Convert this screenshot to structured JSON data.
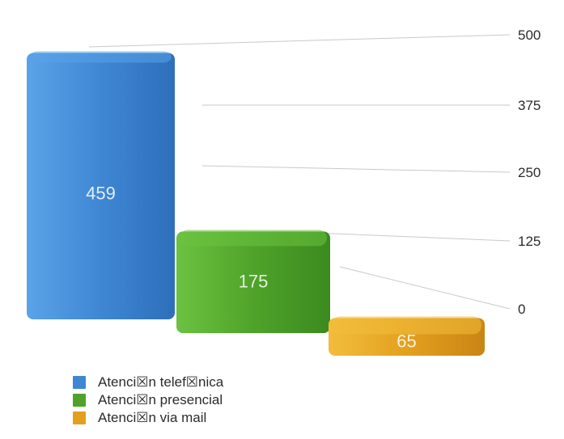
{
  "chart_data": {
    "type": "bar",
    "categories": [
      "Atenci☒n telef☒nica",
      "Atenci☒n presencial",
      "Atenci☒n via mail"
    ],
    "values": [
      459,
      175,
      65
    ],
    "value_labels": [
      "459",
      "175",
      "65"
    ],
    "ylim": [
      0,
      500
    ],
    "yticks": [
      0,
      125,
      250,
      375,
      500
    ],
    "ytick_labels": [
      "0",
      "125",
      "250",
      "375",
      "500"
    ],
    "y_axis_position": "right",
    "grid": true,
    "legend_position": "bottom-left",
    "colors": [
      "#3f87d3",
      "#4fa32a",
      "#e3a01f"
    ],
    "legend": [
      {
        "label": "Atenci☒n telef☒nica",
        "color": "#3f87d3"
      },
      {
        "label": "Atenci☒n presencial",
        "color": "#4fa32a"
      },
      {
        "label": "Atenci☒n via mail",
        "color": "#e3a01f"
      }
    ]
  }
}
